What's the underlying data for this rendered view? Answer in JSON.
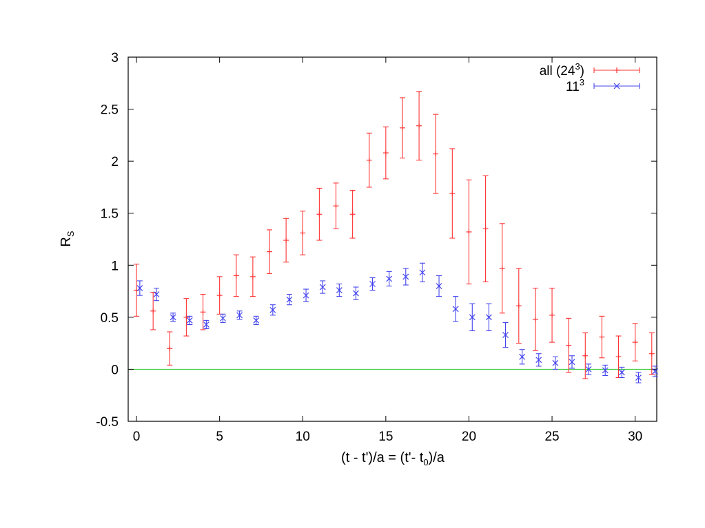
{
  "chart_data": {
    "type": "scatter",
    "title": "",
    "xlabel": {
      "prefix": "(t - t')/a = (t'- t",
      "sub": "0",
      "suffix": ")/a"
    },
    "ylabel": {
      "main": "R",
      "sub": "S"
    },
    "xlim": [
      -0.5,
      31.3
    ],
    "ylim": [
      -0.5,
      3
    ],
    "xticks": [
      0,
      5,
      10,
      15,
      20,
      25,
      30
    ],
    "xtick_labels": [
      "0",
      "5",
      "10",
      "15",
      "20",
      "25",
      "30"
    ],
    "yticks": [
      -0.5,
      0,
      0.5,
      1,
      1.5,
      2,
      2.5,
      3
    ],
    "ytick_labels": [
      "-0.5",
      "0",
      "0.5",
      "1",
      "1.5",
      "2",
      "2.5",
      "3"
    ],
    "grid": false,
    "legend_position": "top-right",
    "reference_line": {
      "y": 0,
      "color": "#33cc33"
    },
    "series": [
      {
        "name": {
          "main": "all (24",
          "sup": "3",
          "suffix": ")"
        },
        "color": "#ff3333",
        "marker": "plus",
        "x": [
          0,
          1,
          2,
          3,
          4,
          5,
          6,
          7,
          8,
          9,
          10,
          11,
          12,
          13,
          14,
          15,
          16,
          17,
          18,
          19,
          20,
          21,
          22,
          23,
          24,
          25,
          26,
          27,
          28,
          29,
          30,
          31
        ],
        "y": [
          0.76,
          0.56,
          0.2,
          0.5,
          0.55,
          0.71,
          0.9,
          0.89,
          1.13,
          1.24,
          1.31,
          1.49,
          1.57,
          1.49,
          2.01,
          2.08,
          2.32,
          2.34,
          2.07,
          1.69,
          1.32,
          1.35,
          0.97,
          0.61,
          0.48,
          0.52,
          0.23,
          0.13,
          0.31,
          0.12,
          0.26,
          0.15
        ],
        "yerr": [
          0.25,
          0.18,
          0.16,
          0.18,
          0.17,
          0.18,
          0.2,
          0.19,
          0.21,
          0.21,
          0.21,
          0.25,
          0.22,
          0.23,
          0.26,
          0.25,
          0.29,
          0.33,
          0.38,
          0.43,
          0.5,
          0.51,
          0.43,
          0.36,
          0.3,
          0.26,
          0.26,
          0.22,
          0.2,
          0.2,
          0.18,
          0.2
        ]
      },
      {
        "name": {
          "main": "11",
          "sup": "3",
          "suffix": ""
        },
        "color": "#4444ee",
        "marker": "x",
        "x": [
          0.2,
          1.2,
          2.2,
          3.2,
          4.2,
          5.2,
          6.2,
          7.2,
          8.2,
          9.2,
          10.2,
          11.2,
          12.2,
          13.2,
          14.2,
          15.2,
          16.2,
          17.2,
          18.2,
          19.2,
          20.2,
          21.2,
          22.2,
          23.2,
          24.2,
          25.2,
          26.2,
          27.2,
          28.2,
          29.2,
          30.2,
          31.2
        ],
        "y": [
          0.78,
          0.72,
          0.5,
          0.47,
          0.43,
          0.49,
          0.52,
          0.47,
          0.57,
          0.67,
          0.71,
          0.79,
          0.76,
          0.73,
          0.82,
          0.87,
          0.89,
          0.93,
          0.8,
          0.58,
          0.5,
          0.5,
          0.33,
          0.12,
          0.09,
          0.06,
          0.07,
          0.0,
          -0.01,
          -0.03,
          -0.08,
          -0.02
        ],
        "yerr": [
          0.07,
          0.06,
          0.04,
          0.04,
          0.04,
          0.04,
          0.04,
          0.04,
          0.05,
          0.05,
          0.06,
          0.06,
          0.06,
          0.06,
          0.06,
          0.07,
          0.08,
          0.09,
          0.1,
          0.12,
          0.13,
          0.13,
          0.12,
          0.07,
          0.06,
          0.06,
          0.06,
          0.05,
          0.05,
          0.05,
          0.05,
          0.05
        ]
      }
    ]
  }
}
